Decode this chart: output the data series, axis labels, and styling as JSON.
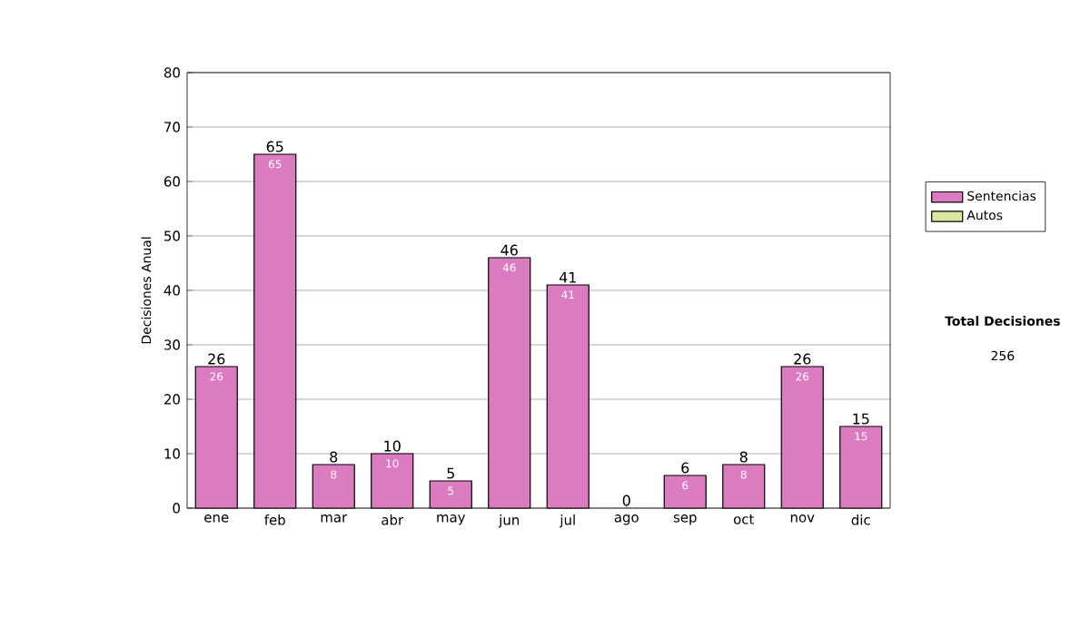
{
  "chart_data": {
    "type": "bar",
    "stacked": true,
    "ylabel": "Decisiones Anual",
    "categories": [
      "ene",
      "feb",
      "mar",
      "abr",
      "may",
      "jun",
      "jul",
      "ago",
      "sep",
      "oct",
      "nov",
      "dic"
    ],
    "series": [
      {
        "name": "Sentencias",
        "color": "#dc7cc0",
        "values": [
          26,
          65,
          8,
          10,
          5,
          46,
          41,
          0,
          6,
          8,
          26,
          15
        ],
        "value_labels": [
          "26",
          "65",
          "8",
          "10",
          "5",
          "46",
          "41",
          null,
          "6",
          "8",
          "26",
          "15"
        ]
      },
      {
        "name": "Autos",
        "color": "#d8e8a0",
        "values": [
          0,
          0,
          0,
          0,
          0,
          0,
          0,
          0,
          0,
          0,
          0,
          0
        ]
      }
    ],
    "totals": [
      "26",
      "65",
      "8",
      "10",
      "5",
      "46",
      "41",
      "0",
      "6",
      "8",
      "26",
      "15"
    ],
    "ylim": [
      0,
      80
    ],
    "yticks": [
      0,
      10,
      20,
      30,
      40,
      50,
      60,
      70,
      80
    ],
    "grid": "y",
    "legend": "right",
    "annotations": [
      "Total Decisiones",
      "256"
    ]
  }
}
